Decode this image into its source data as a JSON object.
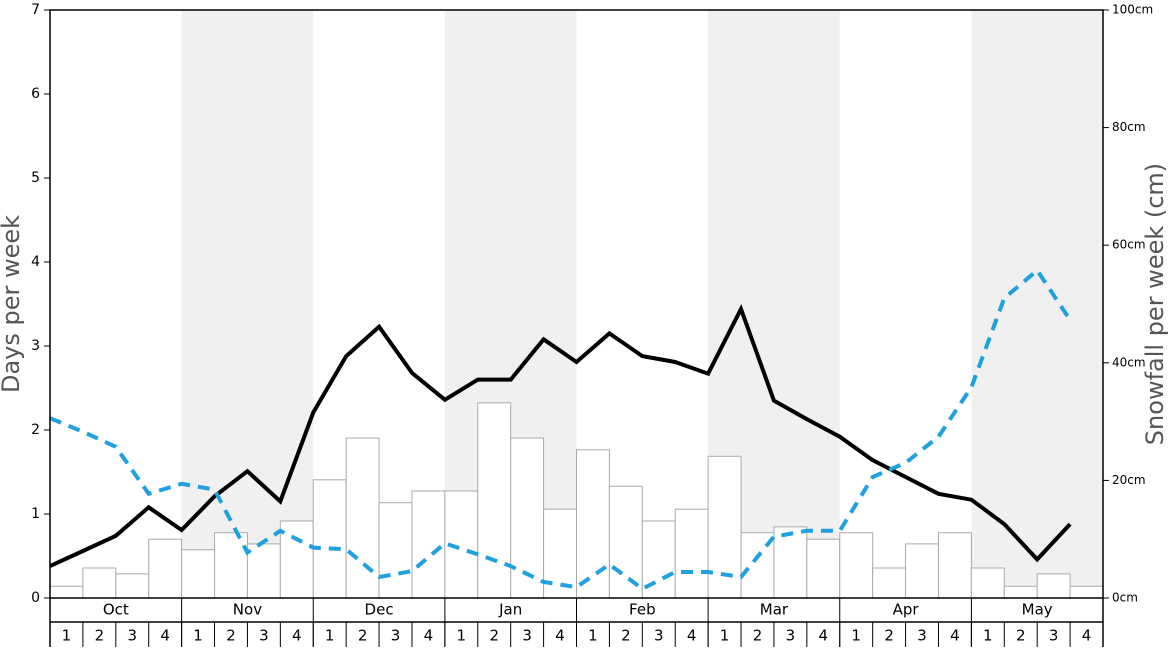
{
  "chart_data": {
    "type": "bar-line",
    "y_label": "Days per week",
    "y2_label": "Snowfall per week (cm)",
    "months": [
      "Oct",
      "Nov",
      "Dec",
      "Jan",
      "Feb",
      "Mar",
      "Apr",
      "May"
    ],
    "categories": [
      "1",
      "2",
      "3",
      "4",
      "1",
      "2",
      "3",
      "4",
      "1",
      "2",
      "3",
      "4",
      "1",
      "2",
      "3",
      "4",
      "1",
      "2",
      "3",
      "4",
      "1",
      "2",
      "3",
      "4",
      "1",
      "2",
      "3",
      "4",
      "1",
      "2",
      "3",
      "4"
    ],
    "ylim": [
      0,
      7
    ],
    "yticks": [
      0,
      1,
      2,
      3,
      4,
      5,
      6,
      7
    ],
    "y2lim": [
      0,
      100
    ],
    "y2ticks": [
      {
        "value": 0,
        "label": "0cm"
      },
      {
        "value": 20,
        "label": "20cm"
      },
      {
        "value": 40,
        "label": "40cm"
      },
      {
        "value": 60,
        "label": "60cm"
      },
      {
        "value": 80,
        "label": "80cm"
      },
      {
        "value": 100,
        "label": "100cm"
      }
    ],
    "series": [
      {
        "kind": "bar",
        "axis": "y2",
        "color": "#ffffff",
        "values": [
          2.0,
          5.1,
          4.1,
          10.0,
          8.2,
          11.1,
          9.2,
          13.1,
          20.1,
          27.2,
          16.2,
          18.2,
          18.2,
          33.2,
          27.2,
          15.1,
          25.2,
          19.0,
          13.1,
          15.1,
          24.1,
          11.1,
          12.1,
          10.0,
          11.1,
          5.1,
          9.2,
          11.1,
          5.1,
          2.0,
          4.1,
          2.0
        ]
      },
      {
        "kind": "line",
        "color": "#000000",
        "values": [
          0.38,
          0.56,
          0.74,
          1.08,
          0.81,
          1.21,
          1.51,
          1.15,
          2.21,
          2.88,
          3.23,
          2.68,
          2.36,
          2.6,
          2.6,
          3.08,
          2.81,
          3.15,
          2.88,
          2.81,
          2.67,
          3.44,
          2.35,
          2.13,
          1.92,
          1.64,
          1.44,
          1.24,
          1.17,
          0.88,
          0.46,
          0.88
        ]
      },
      {
        "kind": "line",
        "dashed": true,
        "color": "#1fa0e0",
        "values": [
          2.14,
          1.98,
          1.8,
          1.24,
          1.36,
          1.29,
          0.54,
          0.8,
          0.6,
          0.58,
          0.25,
          0.32,
          0.65,
          0.52,
          0.38,
          0.19,
          0.13,
          0.4,
          0.11,
          0.31,
          0.31,
          0.25,
          0.73,
          0.8,
          0.8,
          1.44,
          1.61,
          1.92,
          2.51,
          3.57,
          3.9,
          3.31
        ]
      }
    ],
    "shade_color": "#f0f0f0"
  }
}
